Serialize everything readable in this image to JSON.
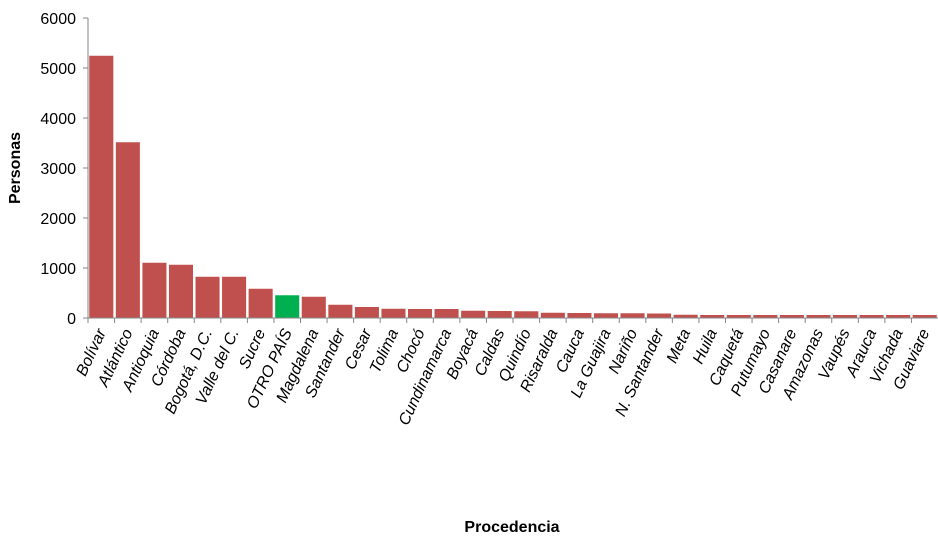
{
  "chart_data": {
    "type": "bar",
    "title": "",
    "xlabel": "Procedencia",
    "ylabel": "Personas",
    "ylim": [
      0,
      6000
    ],
    "yticks": [
      0,
      1000,
      2000,
      3000,
      4000,
      5000,
      6000
    ],
    "grid": false,
    "legend": "none",
    "bar_color": "#c0504d",
    "highlight_color": "#00b050",
    "highlight_category": "OTRO PAÍS",
    "categories": [
      "Bolívar",
      "Atlántico",
      "Antioquia",
      "Córdoba",
      "Bogotá, D.C.",
      "Valle del C.",
      "Sucre",
      "OTRO PAÍS",
      "Magdalena",
      "Santander",
      "Cesar",
      "Tolima",
      "Chocó",
      "Cundinamarca",
      "Boyacá",
      "Caldas",
      "Quindío",
      "Risaralda",
      "Cauca",
      "La Guajira",
      "Nariño",
      "N. Santander",
      "Meta",
      "Huila",
      "Caquetá",
      "Putumayo",
      "Casanare",
      "Amazonas",
      "Vaupés",
      "Arauca",
      "Vichada",
      "Guaviare"
    ],
    "values": [
      5250,
      3520,
      1110,
      1070,
      830,
      830,
      590,
      460,
      430,
      270,
      225,
      190,
      185,
      185,
      150,
      145,
      140,
      110,
      105,
      100,
      100,
      95,
      70,
      65,
      65,
      65,
      65,
      65,
      65,
      65,
      65,
      65
    ]
  }
}
